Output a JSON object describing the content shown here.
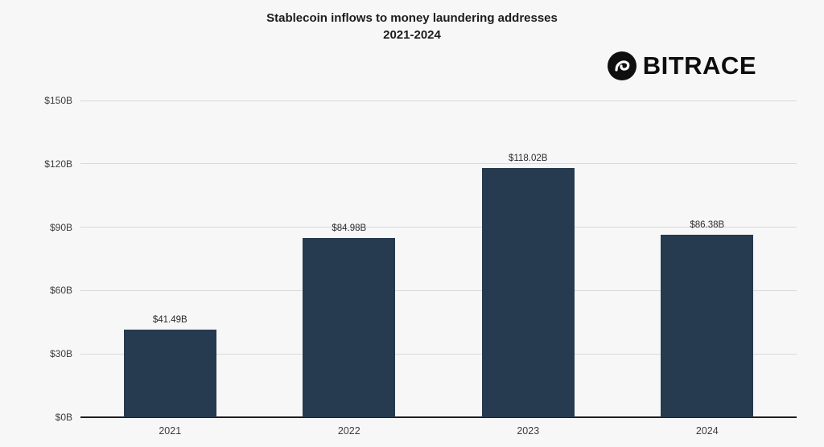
{
  "title": {
    "line1": "Stablecoin inflows to money laundering addresses",
    "line2": "2021-2024"
  },
  "logo": {
    "text": "BITRACE"
  },
  "chart_data": {
    "type": "bar",
    "title": "Stablecoin inflows to money laundering addresses 2021-2024",
    "categories": [
      "2021",
      "2022",
      "2023",
      "2024"
    ],
    "values": [
      41.49,
      84.98,
      118.02,
      86.38
    ],
    "value_labels": [
      "$41.49B",
      "$84.98B",
      "$118.02B",
      "$86.38B"
    ],
    "xlabel": "",
    "ylabel": "",
    "ylim": [
      0,
      150
    ],
    "yticks": [
      0,
      30,
      60,
      90,
      120,
      150
    ],
    "ytick_labels": [
      "$0B",
      "$30B",
      "$60B",
      "$90B",
      "$120B",
      "$150B"
    ],
    "grid": true,
    "legend": "none",
    "bar_color": "#263a50",
    "background": "#f7f7f7",
    "gridline_color": "#d9d9d9",
    "axisline_color": "#1f1f1f"
  }
}
